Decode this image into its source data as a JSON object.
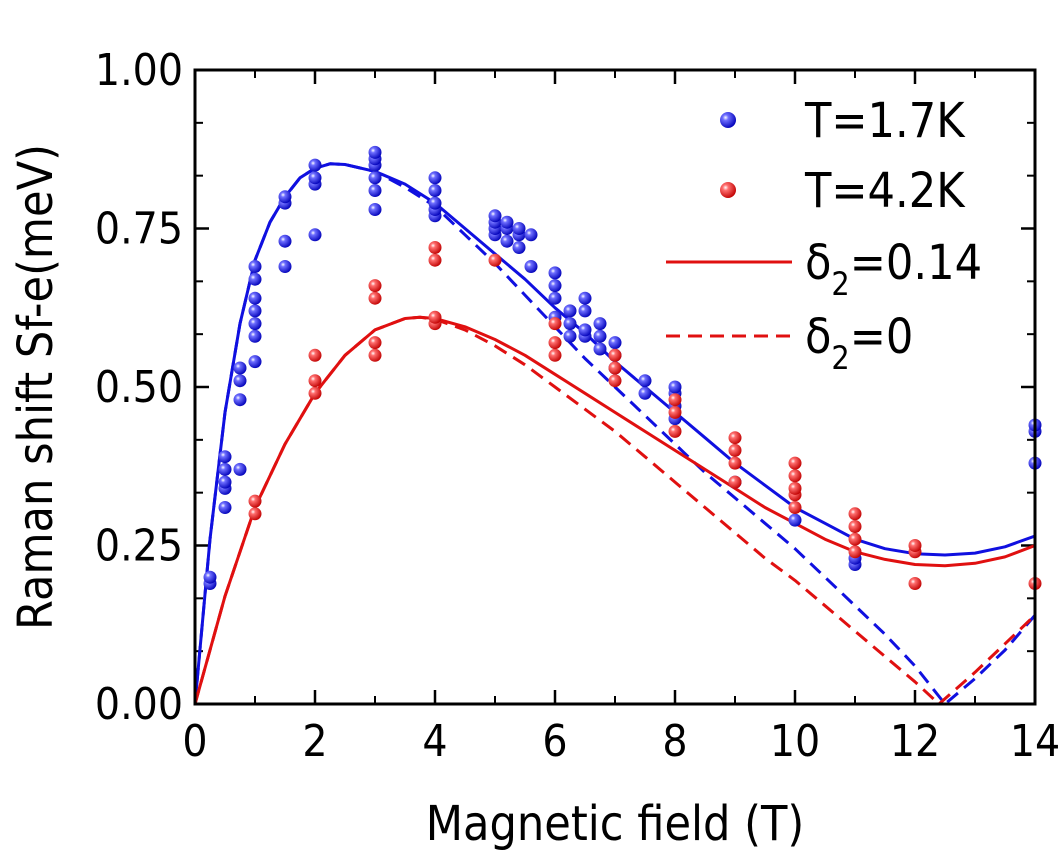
{
  "chart_data": {
    "type": "scatter",
    "xlabel": "Magnetic field (T)",
    "ylabel": "Raman shift Sf-e(meV)",
    "xlim": [
      0,
      14
    ],
    "ylim": [
      0,
      1.0
    ],
    "x_ticks": [
      0,
      2,
      4,
      6,
      8,
      10,
      12,
      14
    ],
    "x_tick_labels": [
      "0",
      "2",
      "4",
      "6",
      "8",
      "10",
      "12",
      "14"
    ],
    "y_ticks": [
      0,
      0.25,
      0.5,
      0.75,
      1.0
    ],
    "y_tick_labels": [
      "0.00",
      "0.25",
      "0.50",
      "0.75",
      "1.00"
    ],
    "legend": {
      "position": "top-right",
      "entries": [
        {
          "kind": "marker",
          "color": "#1010e0",
          "text": "T=1.7K"
        },
        {
          "kind": "marker",
          "color": "#e01010",
          "text": "T=4.2K"
        },
        {
          "kind": "solid-line",
          "color": "#e01010",
          "symbol": "δ",
          "subscript": "2",
          "value": "=0.14"
        },
        {
          "kind": "dashed-line",
          "color": "#e01010",
          "symbol": "δ",
          "subscript": "2",
          "value": "=0"
        }
      ]
    },
    "series": [
      {
        "name": "T=1.7K",
        "kind": "scatter",
        "color": "#1010e0",
        "points": [
          [
            0.25,
            0.19
          ],
          [
            0.25,
            0.2
          ],
          [
            0.5,
            0.31
          ],
          [
            0.5,
            0.34
          ],
          [
            0.5,
            0.35
          ],
          [
            0.5,
            0.37
          ],
          [
            0.5,
            0.39
          ],
          [
            0.75,
            0.37
          ],
          [
            0.75,
            0.48
          ],
          [
            0.75,
            0.51
          ],
          [
            0.75,
            0.53
          ],
          [
            1.0,
            0.54
          ],
          [
            1.0,
            0.58
          ],
          [
            1.0,
            0.6
          ],
          [
            1.0,
            0.62
          ],
          [
            1.0,
            0.64
          ],
          [
            1.0,
            0.67
          ],
          [
            1.0,
            0.69
          ],
          [
            1.5,
            0.69
          ],
          [
            1.5,
            0.73
          ],
          [
            1.5,
            0.79
          ],
          [
            1.5,
            0.8
          ],
          [
            2.0,
            0.74
          ],
          [
            2.0,
            0.82
          ],
          [
            2.0,
            0.83
          ],
          [
            2.0,
            0.85
          ],
          [
            3.0,
            0.78
          ],
          [
            3.0,
            0.81
          ],
          [
            3.0,
            0.83
          ],
          [
            3.0,
            0.85
          ],
          [
            3.0,
            0.86
          ],
          [
            3.0,
            0.87
          ],
          [
            4.0,
            0.77
          ],
          [
            4.0,
            0.78
          ],
          [
            4.0,
            0.79
          ],
          [
            4.0,
            0.81
          ],
          [
            4.0,
            0.83
          ],
          [
            5.0,
            0.74
          ],
          [
            5.0,
            0.75
          ],
          [
            5.0,
            0.76
          ],
          [
            5.0,
            0.77
          ],
          [
            5.2,
            0.73
          ],
          [
            5.2,
            0.75
          ],
          [
            5.2,
            0.76
          ],
          [
            5.4,
            0.72
          ],
          [
            5.4,
            0.74
          ],
          [
            5.4,
            0.75
          ],
          [
            5.6,
            0.69
          ],
          [
            5.6,
            0.74
          ],
          [
            6.0,
            0.61
          ],
          [
            6.0,
            0.64
          ],
          [
            6.0,
            0.66
          ],
          [
            6.0,
            0.68
          ],
          [
            6.25,
            0.58
          ],
          [
            6.25,
            0.6
          ],
          [
            6.25,
            0.62
          ],
          [
            6.5,
            0.58
          ],
          [
            6.5,
            0.59
          ],
          [
            6.5,
            0.62
          ],
          [
            6.5,
            0.64
          ],
          [
            6.75,
            0.56
          ],
          [
            6.75,
            0.58
          ],
          [
            6.75,
            0.6
          ],
          [
            7.0,
            0.53
          ],
          [
            7.0,
            0.55
          ],
          [
            7.0,
            0.57
          ],
          [
            7.5,
            0.49
          ],
          [
            7.5,
            0.51
          ],
          [
            8.0,
            0.45
          ],
          [
            8.0,
            0.47
          ],
          [
            8.0,
            0.49
          ],
          [
            8.0,
            0.5
          ],
          [
            9.0,
            0.35
          ],
          [
            10.0,
            0.29
          ],
          [
            11.0,
            0.22
          ],
          [
            11.0,
            0.23
          ],
          [
            14.0,
            0.38
          ],
          [
            14.0,
            0.43
          ],
          [
            14.0,
            0.44
          ]
        ]
      },
      {
        "name": "T=4.2K",
        "kind": "scatter",
        "color": "#e01010",
        "points": [
          [
            1.0,
            0.3
          ],
          [
            1.0,
            0.32
          ],
          [
            2.0,
            0.49
          ],
          [
            2.0,
            0.51
          ],
          [
            2.0,
            0.55
          ],
          [
            3.0,
            0.55
          ],
          [
            3.0,
            0.57
          ],
          [
            3.0,
            0.64
          ],
          [
            3.0,
            0.66
          ],
          [
            4.0,
            0.6
          ],
          [
            4.0,
            0.61
          ],
          [
            4.0,
            0.7
          ],
          [
            4.0,
            0.72
          ],
          [
            5.0,
            0.7
          ],
          [
            6.0,
            0.55
          ],
          [
            6.0,
            0.57
          ],
          [
            6.0,
            0.6
          ],
          [
            7.0,
            0.51
          ],
          [
            7.0,
            0.53
          ],
          [
            7.0,
            0.55
          ],
          [
            8.0,
            0.43
          ],
          [
            8.0,
            0.46
          ],
          [
            8.0,
            0.48
          ],
          [
            9.0,
            0.35
          ],
          [
            9.0,
            0.38
          ],
          [
            9.0,
            0.4
          ],
          [
            9.0,
            0.42
          ],
          [
            10.0,
            0.31
          ],
          [
            10.0,
            0.33
          ],
          [
            10.0,
            0.34
          ],
          [
            10.0,
            0.36
          ],
          [
            10.0,
            0.38
          ],
          [
            11.0,
            0.24
          ],
          [
            11.0,
            0.26
          ],
          [
            11.0,
            0.28
          ],
          [
            11.0,
            0.3
          ],
          [
            12.0,
            0.19
          ],
          [
            12.0,
            0.24
          ],
          [
            12.0,
            0.25
          ],
          [
            14.0,
            0.19
          ]
        ]
      },
      {
        "name": "fit T=1.7K δ2=0.14",
        "kind": "solid-line",
        "color": "#1010e0",
        "points": [
          [
            0,
            0
          ],
          [
            0.25,
            0.26
          ],
          [
            0.5,
            0.46
          ],
          [
            0.75,
            0.6
          ],
          [
            1.0,
            0.7
          ],
          [
            1.25,
            0.76
          ],
          [
            1.5,
            0.8
          ],
          [
            1.75,
            0.83
          ],
          [
            2.0,
            0.845
          ],
          [
            2.25,
            0.852
          ],
          [
            2.5,
            0.851
          ],
          [
            3.0,
            0.84
          ],
          [
            3.5,
            0.82
          ],
          [
            4.0,
            0.79
          ],
          [
            4.5,
            0.75
          ],
          [
            5.0,
            0.71
          ],
          [
            5.5,
            0.67
          ],
          [
            6.0,
            0.625
          ],
          [
            6.5,
            0.585
          ],
          [
            7.0,
            0.54
          ],
          [
            7.5,
            0.5
          ],
          [
            8.0,
            0.46
          ],
          [
            8.5,
            0.42
          ],
          [
            9.0,
            0.38
          ],
          [
            9.5,
            0.345
          ],
          [
            10.0,
            0.31
          ],
          [
            10.5,
            0.285
          ],
          [
            11.0,
            0.26
          ],
          [
            11.5,
            0.245
          ],
          [
            12.0,
            0.237
          ],
          [
            12.5,
            0.235
          ],
          [
            13.0,
            0.238
          ],
          [
            13.5,
            0.248
          ],
          [
            14.0,
            0.265
          ]
        ]
      },
      {
        "name": "fit T=1.7K δ2=0",
        "kind": "dashed-line",
        "color": "#1010e0",
        "points": [
          [
            0,
            0
          ],
          [
            0.25,
            0.26
          ],
          [
            0.5,
            0.46
          ],
          [
            0.75,
            0.6
          ],
          [
            1.0,
            0.7
          ],
          [
            1.25,
            0.76
          ],
          [
            1.5,
            0.8
          ],
          [
            1.75,
            0.83
          ],
          [
            2.0,
            0.845
          ],
          [
            2.25,
            0.852
          ],
          [
            2.5,
            0.851
          ],
          [
            3.0,
            0.84
          ],
          [
            3.5,
            0.815
          ],
          [
            4.0,
            0.785
          ],
          [
            4.5,
            0.74
          ],
          [
            5.0,
            0.695
          ],
          [
            5.5,
            0.645
          ],
          [
            6.0,
            0.595
          ],
          [
            6.5,
            0.545
          ],
          [
            7.0,
            0.5
          ],
          [
            7.5,
            0.455
          ],
          [
            8.0,
            0.41
          ],
          [
            8.5,
            0.365
          ],
          [
            9.0,
            0.325
          ],
          [
            9.5,
            0.285
          ],
          [
            10.0,
            0.245
          ],
          [
            10.5,
            0.2
          ],
          [
            11.0,
            0.155
          ],
          [
            11.5,
            0.11
          ],
          [
            12.0,
            0.06
          ],
          [
            12.5,
            0.0
          ],
          [
            13.0,
            0.04
          ],
          [
            13.5,
            0.085
          ],
          [
            14.0,
            0.14
          ]
        ]
      },
      {
        "name": "fit T=4.2K δ2=0.14",
        "kind": "solid-line",
        "color": "#e01010",
        "points": [
          [
            0,
            0
          ],
          [
            0.5,
            0.17
          ],
          [
            1.0,
            0.31
          ],
          [
            1.5,
            0.41
          ],
          [
            2.0,
            0.49
          ],
          [
            2.5,
            0.55
          ],
          [
            3.0,
            0.59
          ],
          [
            3.5,
            0.608
          ],
          [
            3.75,
            0.61
          ],
          [
            4.0,
            0.608
          ],
          [
            4.5,
            0.595
          ],
          [
            5.0,
            0.575
          ],
          [
            5.5,
            0.55
          ],
          [
            6.0,
            0.52
          ],
          [
            6.5,
            0.49
          ],
          [
            7.0,
            0.46
          ],
          [
            7.5,
            0.43
          ],
          [
            8.0,
            0.4
          ],
          [
            8.5,
            0.37
          ],
          [
            9.0,
            0.34
          ],
          [
            9.5,
            0.31
          ],
          [
            10.0,
            0.285
          ],
          [
            10.5,
            0.26
          ],
          [
            11.0,
            0.24
          ],
          [
            11.5,
            0.228
          ],
          [
            12.0,
            0.22
          ],
          [
            12.5,
            0.218
          ],
          [
            13.0,
            0.222
          ],
          [
            13.5,
            0.232
          ],
          [
            14.0,
            0.25
          ]
        ]
      },
      {
        "name": "fit T=4.2K δ2=0",
        "kind": "dashed-line",
        "color": "#e01010",
        "points": [
          [
            0,
            0
          ],
          [
            0.5,
            0.17
          ],
          [
            1.0,
            0.31
          ],
          [
            1.5,
            0.41
          ],
          [
            2.0,
            0.49
          ],
          [
            2.5,
            0.55
          ],
          [
            3.0,
            0.59
          ],
          [
            3.5,
            0.608
          ],
          [
            3.75,
            0.61
          ],
          [
            4.0,
            0.607
          ],
          [
            4.5,
            0.59
          ],
          [
            5.0,
            0.565
          ],
          [
            5.5,
            0.535
          ],
          [
            6.0,
            0.5
          ],
          [
            6.5,
            0.465
          ],
          [
            7.0,
            0.43
          ],
          [
            7.5,
            0.39
          ],
          [
            8.0,
            0.35
          ],
          [
            8.5,
            0.31
          ],
          [
            9.0,
            0.27
          ],
          [
            9.5,
            0.23
          ],
          [
            10.0,
            0.195
          ],
          [
            10.5,
            0.155
          ],
          [
            11.0,
            0.115
          ],
          [
            11.5,
            0.075
          ],
          [
            12.0,
            0.035
          ],
          [
            12.4,
            0.0
          ],
          [
            13.0,
            0.05
          ],
          [
            13.5,
            0.095
          ],
          [
            14.0,
            0.14
          ]
        ]
      }
    ]
  }
}
